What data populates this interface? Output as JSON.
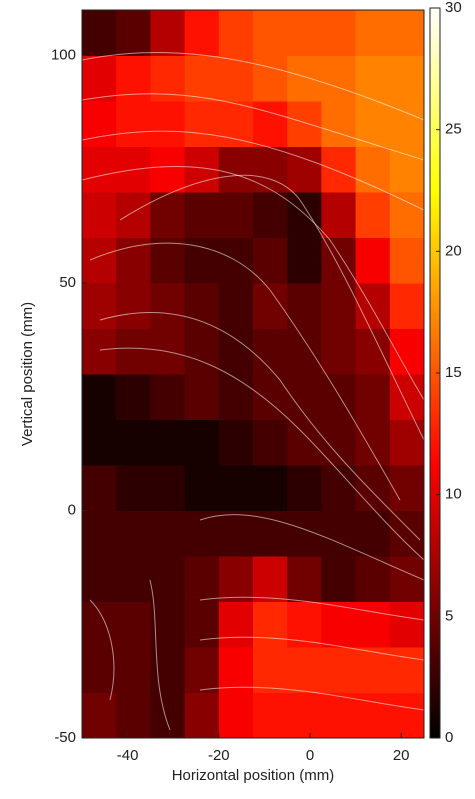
{
  "chart_data": {
    "type": "heatmap",
    "xlabel": "Horizontal position (mm)",
    "ylabel": "Vertical position (mm)",
    "xbins": [
      -50,
      -42.5,
      -35,
      -27.5,
      -20,
      -12.5,
      -5,
      2.5,
      10,
      17.5,
      25
    ],
    "ybins": [
      -50,
      -40,
      -30,
      -20,
      -10,
      0,
      10,
      20,
      30,
      40,
      50,
      60,
      70,
      80,
      90,
      100,
      110
    ],
    "values": [
      [
        5,
        4,
        3,
        6,
        11,
        12,
        12,
        12,
        12,
        12
      ],
      [
        4,
        4,
        3,
        5,
        11,
        13,
        13,
        13,
        13,
        13
      ],
      [
        4,
        4,
        3,
        4,
        10,
        13,
        12,
        11,
        11,
        10
      ],
      [
        3,
        3,
        3,
        4,
        6,
        9,
        5,
        3,
        4,
        5
      ],
      [
        3,
        3,
        3,
        3,
        3,
        3,
        3,
        3,
        3,
        4
      ],
      [
        3,
        2,
        2,
        1,
        1,
        1,
        2,
        3,
        4,
        5
      ],
      [
        1,
        1,
        1,
        1,
        2,
        3,
        4,
        4,
        5,
        7
      ],
      [
        1,
        2,
        3,
        4,
        3,
        4,
        4,
        4,
        5,
        9
      ],
      [
        6,
        5,
        5,
        4,
        3,
        4,
        4,
        5,
        6,
        11
      ],
      [
        7,
        6,
        5,
        4,
        3,
        5,
        4,
        5,
        8,
        13
      ],
      [
        8,
        6,
        4,
        3,
        3,
        4,
        2,
        5,
        11,
        15
      ],
      [
        9,
        8,
        5,
        4,
        4,
        3,
        2,
        8,
        14,
        16
      ],
      [
        10,
        10,
        11,
        9,
        6,
        6,
        7,
        13,
        16,
        17
      ],
      [
        11,
        12,
        12,
        13,
        13,
        12,
        14,
        16,
        17,
        17
      ],
      [
        10,
        12,
        13,
        14,
        14,
        15,
        16,
        16,
        17,
        17
      ],
      [
        3,
        4,
        8,
        12,
        14,
        15,
        15,
        15,
        16,
        16
      ]
    ],
    "xlim": [
      -50,
      25
    ],
    "ylim": [
      -50,
      110
    ],
    "xticks": [
      -40,
      -20,
      0,
      20
    ],
    "yticks": [
      -50,
      0,
      50,
      100
    ],
    "colormap": "hot",
    "clim": [
      0,
      30
    ],
    "colorbar_ticks": [
      0,
      5,
      10,
      15,
      20,
      25,
      30
    ]
  }
}
